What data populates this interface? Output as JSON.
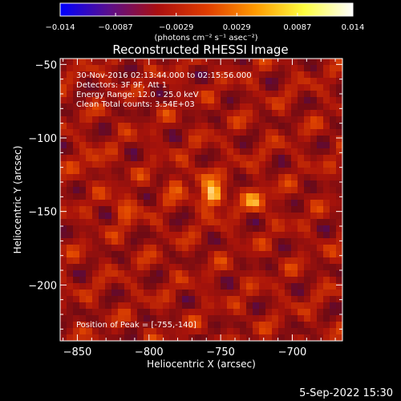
{
  "chart_data": {
    "type": "heatmap",
    "title": "Reconstructed RHESSI Image",
    "xlabel": "Heliocentric X (arcsec)",
    "ylabel": "Heliocentric Y (arcsec)",
    "xlim": [
      -862,
      -665
    ],
    "ylim": [
      -238,
      -46
    ],
    "xticks": [
      -850,
      -800,
      -750,
      -700
    ],
    "xtick_labels": [
      "−850",
      "−800",
      "−750",
      "−700"
    ],
    "yticks": [
      -50,
      -100,
      -150,
      -200
    ],
    "ytick_labels": [
      "−50",
      "−100",
      "−150",
      "−200"
    ],
    "colorbar": {
      "range": [
        -0.014,
        0.014
      ],
      "ticks": [
        -0.014,
        -0.0087,
        -0.0029,
        0.0029,
        0.0087,
        0.014
      ],
      "tick_labels": [
        "−0.014",
        "−0.0087",
        "−0.0029",
        "0.0029",
        "0.0087",
        "0.014"
      ],
      "units": "(photons cm⁻² s⁻¹ asec⁻²)",
      "colors": [
        "#0000ff",
        "#5a0f8c",
        "#aa0f10",
        "#e03c00",
        "#ff9a00",
        "#ffff40",
        "#ffffff"
      ]
    },
    "annotations": [
      "30-Nov-2016 02:13:44.000 to 02:15:56.000",
      "Detectors: 3F 9F, Att 1",
      "Energy Range: 12.0 - 25.0 keV",
      "Clean    Total counts: 3.54E+03"
    ],
    "peak_label": "Position of Peak = [-755,-140]",
    "peak": {
      "x": -755,
      "y": -140
    },
    "sources": [
      {
        "x": -755,
        "y": -140,
        "value": 0.014
      },
      {
        "x": -725,
        "y": -142,
        "value": 0.009
      },
      {
        "x": -818,
        "y": -148,
        "value": 0.007
      },
      {
        "x": -840,
        "y": -118,
        "value": 0.006
      },
      {
        "x": -782,
        "y": -132,
        "value": 0.006
      },
      {
        "x": -762,
        "y": -125,
        "value": 0.005
      }
    ],
    "grid": false
  },
  "footer": {
    "timestamp": "5-Sep-2022 15:30"
  }
}
